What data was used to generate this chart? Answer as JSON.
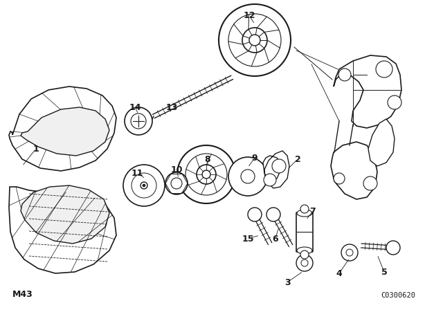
{
  "bg_color": "#ffffff",
  "line_color": "#1a1a1a",
  "fig_width": 6.4,
  "fig_height": 4.48,
  "dpi": 100,
  "bottom_left_text": "M43",
  "bottom_right_text": "C0300620"
}
